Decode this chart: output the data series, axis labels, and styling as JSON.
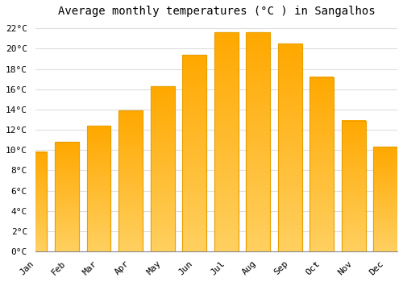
{
  "title": "Average monthly temperatures (°C ) in Sangalhos",
  "months": [
    "Jan",
    "Feb",
    "Mar",
    "Apr",
    "May",
    "Jun",
    "Jul",
    "Aug",
    "Sep",
    "Oct",
    "Nov",
    "Dec"
  ],
  "values": [
    9.8,
    10.8,
    12.4,
    13.9,
    16.3,
    19.4,
    21.6,
    21.6,
    20.5,
    17.2,
    12.9,
    10.3
  ],
  "bar_color_top": "#FFB020",
  "bar_color_bottom": "#FFC84A",
  "bar_edge_color": "#E8A000",
  "background_color": "#FFFFFF",
  "grid_color": "#DDDDDD",
  "ylim": [
    0,
    22.5
  ],
  "ytick_step": 2,
  "title_fontsize": 10,
  "tick_fontsize": 8,
  "font_family": "monospace"
}
